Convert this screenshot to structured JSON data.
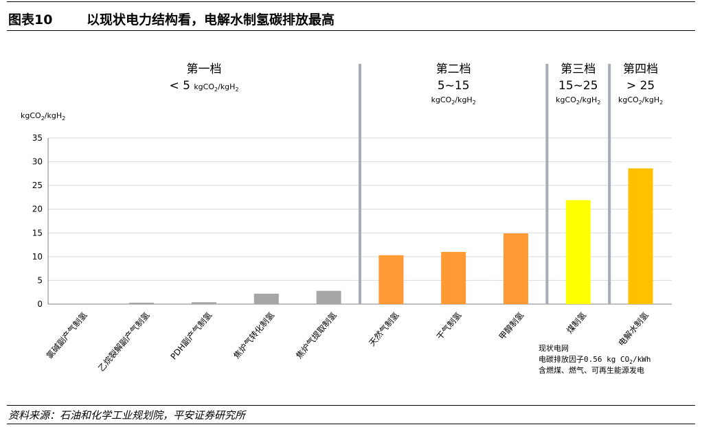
{
  "figure": {
    "label": "图表10",
    "title": "以现状电力结构看，电解水制氢碳排放最高",
    "source": "资料来源：石油和化学工业规划院，平安证券研究所"
  },
  "chart_data": {
    "type": "bar",
    "ylabel_main": "kgCO",
    "ylabel_sub1": "2",
    "ylabel_mid": "/kgH",
    "ylabel_sub2": "2",
    "ylim": [
      0,
      35
    ],
    "yticks": [
      0,
      5,
      10,
      15,
      20,
      25,
      30,
      35
    ],
    "grid": true,
    "categories": [
      "氯碱副产气制氢",
      "乙烷裂解副产气制氢",
      "PDH副产气制氢",
      "焦炉气转化制氢",
      "焦炉气提取制氢",
      "天然气制氢",
      "干气制氢",
      "甲醇制氢",
      "煤制氢",
      "电解水制氢"
    ],
    "values": [
      0.0,
      0.3,
      0.4,
      2.2,
      2.8,
      10.3,
      11.0,
      14.9,
      21.9,
      28.6
    ],
    "colors": [
      "#a6a6a6",
      "#a6a6a6",
      "#a6a6a6",
      "#a6a6a6",
      "#a6a6a6",
      "#ff9933",
      "#ff9933",
      "#ff9933",
      "#ffff00",
      "#ffc000"
    ],
    "tiers": [
      {
        "name": "第一档",
        "range": "< 5",
        "unit": "kgCO2/kgH2"
      },
      {
        "name": "第二档",
        "range": "5~15",
        "unit": "kgCO2/kgH2"
      },
      {
        "name": "第三档",
        "range": "15~25",
        "unit": "kgCO2/kgH2"
      },
      {
        "name": "第四档",
        "range": "> 25",
        "unit": "kgCO2/kgH2"
      }
    ],
    "divider_color": "#a6adb8",
    "annotation": {
      "line1": "现状电网",
      "line2": "电碳排放因子0.56 kg CO",
      "line2_sub": "2",
      "line2_end": "/kWh",
      "line3": "含燃煤、燃气、可再生能源发电"
    }
  }
}
